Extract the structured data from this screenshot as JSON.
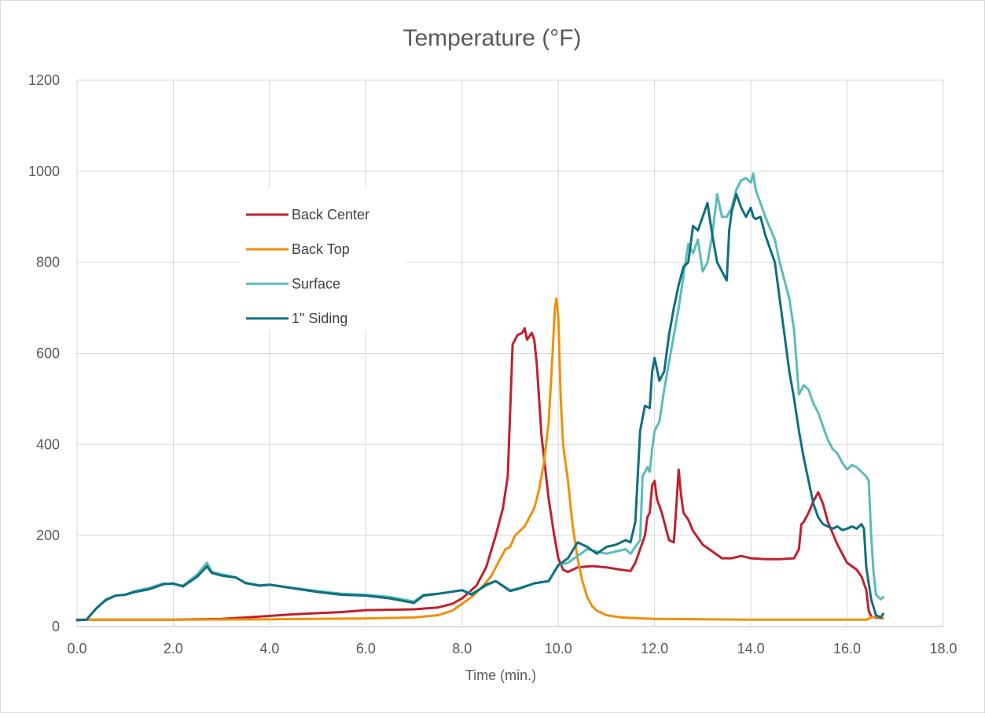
{
  "chart_data": {
    "type": "line",
    "title": "Temperature (°F)",
    "xlabel": "Time (min.)",
    "ylabel": "",
    "xlim": [
      0,
      18
    ],
    "ylim": [
      0,
      1200
    ],
    "x_ticks": [
      "0.0",
      "2.0",
      "4.0",
      "6.0",
      "8.0",
      "10.0",
      "12.0",
      "14.0",
      "16.0",
      "18.0"
    ],
    "y_ticks": [
      "0",
      "200",
      "400",
      "600",
      "800",
      "1000",
      "1200"
    ],
    "grid": true,
    "legend_position": "upper-left inside plot",
    "series": [
      {
        "name": "Back Center",
        "color": "#C0202E",
        "points": [
          [
            0,
            15
          ],
          [
            1,
            15
          ],
          [
            2,
            15
          ],
          [
            3,
            17
          ],
          [
            3.8,
            22
          ],
          [
            4.5,
            27
          ],
          [
            5.5,
            32
          ],
          [
            6,
            36
          ],
          [
            7,
            38
          ],
          [
            7.5,
            42
          ],
          [
            7.8,
            50
          ],
          [
            8,
            62
          ],
          [
            8.3,
            90
          ],
          [
            8.5,
            130
          ],
          [
            8.7,
            200
          ],
          [
            8.85,
            260
          ],
          [
            8.95,
            330
          ],
          [
            9.05,
            620
          ],
          [
            9.15,
            640
          ],
          [
            9.25,
            645
          ],
          [
            9.3,
            655
          ],
          [
            9.35,
            630
          ],
          [
            9.45,
            645
          ],
          [
            9.5,
            630
          ],
          [
            9.55,
            580
          ],
          [
            9.65,
            420
          ],
          [
            9.8,
            280
          ],
          [
            9.9,
            210
          ],
          [
            10,
            150
          ],
          [
            10.1,
            125
          ],
          [
            10.2,
            120
          ],
          [
            10.4,
            130
          ],
          [
            10.7,
            133
          ],
          [
            11,
            130
          ],
          [
            11.3,
            125
          ],
          [
            11.5,
            122
          ],
          [
            11.6,
            140
          ],
          [
            11.8,
            200
          ],
          [
            11.85,
            240
          ],
          [
            11.9,
            250
          ],
          [
            11.95,
            310
          ],
          [
            12,
            320
          ],
          [
            12.05,
            280
          ],
          [
            12.15,
            250
          ],
          [
            12.3,
            190
          ],
          [
            12.4,
            185
          ],
          [
            12.45,
            260
          ],
          [
            12.5,
            345
          ],
          [
            12.55,
            290
          ],
          [
            12.6,
            250
          ],
          [
            12.7,
            235
          ],
          [
            12.8,
            210
          ],
          [
            13,
            180
          ],
          [
            13.2,
            165
          ],
          [
            13.4,
            150
          ],
          [
            13.6,
            150
          ],
          [
            13.8,
            155
          ],
          [
            14,
            150
          ],
          [
            14.3,
            148
          ],
          [
            14.6,
            148
          ],
          [
            14.9,
            150
          ],
          [
            15,
            170
          ],
          [
            15.05,
            225
          ],
          [
            15.1,
            230
          ],
          [
            15.2,
            250
          ],
          [
            15.3,
            275
          ],
          [
            15.35,
            285
          ],
          [
            15.4,
            295
          ],
          [
            15.5,
            270
          ],
          [
            15.6,
            230
          ],
          [
            15.8,
            180
          ],
          [
            16,
            140
          ],
          [
            16.2,
            125
          ],
          [
            16.3,
            110
          ],
          [
            16.4,
            80
          ],
          [
            16.45,
            35
          ],
          [
            16.5,
            22
          ],
          [
            16.6,
            20
          ],
          [
            16.75,
            18
          ]
        ]
      },
      {
        "name": "Back Top",
        "color": "#F0900A",
        "points": [
          [
            0,
            15
          ],
          [
            2,
            15
          ],
          [
            4,
            16
          ],
          [
            6,
            18
          ],
          [
            7,
            20
          ],
          [
            7.5,
            25
          ],
          [
            7.8,
            35
          ],
          [
            8,
            50
          ],
          [
            8.2,
            65
          ],
          [
            8.4,
            85
          ],
          [
            8.6,
            110
          ],
          [
            8.75,
            140
          ],
          [
            8.9,
            170
          ],
          [
            9,
            175
          ],
          [
            9.1,
            200
          ],
          [
            9.2,
            210
          ],
          [
            9.3,
            220
          ],
          [
            9.4,
            240
          ],
          [
            9.5,
            260
          ],
          [
            9.6,
            300
          ],
          [
            9.7,
            360
          ],
          [
            9.8,
            450
          ],
          [
            9.88,
            600
          ],
          [
            9.93,
            700
          ],
          [
            9.96,
            720
          ],
          [
            10,
            680
          ],
          [
            10.05,
            500
          ],
          [
            10.1,
            400
          ],
          [
            10.2,
            320
          ],
          [
            10.3,
            220
          ],
          [
            10.4,
            150
          ],
          [
            10.5,
            100
          ],
          [
            10.6,
            65
          ],
          [
            10.7,
            45
          ],
          [
            10.8,
            35
          ],
          [
            11,
            25
          ],
          [
            11.3,
            20
          ],
          [
            12,
            17
          ],
          [
            13,
            16
          ],
          [
            14,
            15
          ],
          [
            15,
            15
          ],
          [
            16,
            15
          ],
          [
            16.4,
            15
          ],
          [
            16.5,
            20
          ],
          [
            16.6,
            22
          ],
          [
            16.75,
            18
          ]
        ]
      },
      {
        "name": "Surface",
        "color": "#5BBCB6",
        "points": [
          [
            0,
            14
          ],
          [
            0.2,
            16
          ],
          [
            0.4,
            40
          ],
          [
            0.6,
            60
          ],
          [
            0.8,
            68
          ],
          [
            1,
            70
          ],
          [
            1.2,
            78
          ],
          [
            1.5,
            85
          ],
          [
            1.8,
            95
          ],
          [
            2,
            93
          ],
          [
            2.2,
            90
          ],
          [
            2.5,
            115
          ],
          [
            2.7,
            140
          ],
          [
            2.8,
            120
          ],
          [
            3,
            115
          ],
          [
            3.3,
            108
          ],
          [
            3.5,
            95
          ],
          [
            3.8,
            90
          ],
          [
            4,
            92
          ],
          [
            4.5,
            85
          ],
          [
            5,
            78
          ],
          [
            5.5,
            72
          ],
          [
            6,
            70
          ],
          [
            6.5,
            65
          ],
          [
            7,
            55
          ],
          [
            7.2,
            70
          ],
          [
            7.5,
            72
          ],
          [
            8,
            80
          ],
          [
            8.2,
            72
          ],
          [
            8.5,
            90
          ],
          [
            8.7,
            100
          ],
          [
            9,
            80
          ],
          [
            9.2,
            85
          ],
          [
            9.5,
            95
          ],
          [
            9.8,
            100
          ],
          [
            10,
            135
          ],
          [
            10.2,
            140
          ],
          [
            10.4,
            155
          ],
          [
            10.6,
            170
          ],
          [
            10.8,
            165
          ],
          [
            11,
            160
          ],
          [
            11.2,
            165
          ],
          [
            11.4,
            170
          ],
          [
            11.5,
            160
          ],
          [
            11.6,
            175
          ],
          [
            11.7,
            190
          ],
          [
            11.75,
            330
          ],
          [
            11.85,
            350
          ],
          [
            11.9,
            340
          ],
          [
            11.95,
            390
          ],
          [
            12,
            430
          ],
          [
            12.1,
            450
          ],
          [
            12.2,
            520
          ],
          [
            12.3,
            580
          ],
          [
            12.4,
            640
          ],
          [
            12.5,
            700
          ],
          [
            12.6,
            770
          ],
          [
            12.7,
            840
          ],
          [
            12.8,
            820
          ],
          [
            12.9,
            850
          ],
          [
            13,
            780
          ],
          [
            13.1,
            800
          ],
          [
            13.2,
            860
          ],
          [
            13.3,
            950
          ],
          [
            13.4,
            900
          ],
          [
            13.5,
            900
          ],
          [
            13.6,
            920
          ],
          [
            13.7,
            960
          ],
          [
            13.8,
            980
          ],
          [
            13.9,
            985
          ],
          [
            14,
            975
          ],
          [
            14.05,
            995
          ],
          [
            14.1,
            960
          ],
          [
            14.2,
            930
          ],
          [
            14.3,
            900
          ],
          [
            14.5,
            850
          ],
          [
            14.6,
            800
          ],
          [
            14.7,
            760
          ],
          [
            14.8,
            720
          ],
          [
            14.9,
            650
          ],
          [
            15,
            510
          ],
          [
            15.1,
            530
          ],
          [
            15.2,
            520
          ],
          [
            15.3,
            490
          ],
          [
            15.4,
            470
          ],
          [
            15.5,
            440
          ],
          [
            15.6,
            410
          ],
          [
            15.7,
            390
          ],
          [
            15.8,
            380
          ],
          [
            15.9,
            360
          ],
          [
            16,
            345
          ],
          [
            16.1,
            355
          ],
          [
            16.2,
            350
          ],
          [
            16.3,
            340
          ],
          [
            16.4,
            330
          ],
          [
            16.45,
            320
          ],
          [
            16.5,
            200
          ],
          [
            16.55,
            120
          ],
          [
            16.6,
            70
          ],
          [
            16.7,
            60
          ],
          [
            16.75,
            65
          ]
        ]
      },
      {
        "name": "1\" Siding",
        "color": "#0F6E82",
        "points": [
          [
            0,
            14
          ],
          [
            0.2,
            15
          ],
          [
            0.4,
            40
          ],
          [
            0.6,
            58
          ],
          [
            0.8,
            68
          ],
          [
            1,
            70
          ],
          [
            1.2,
            76
          ],
          [
            1.5,
            82
          ],
          [
            1.8,
            93
          ],
          [
            2,
            95
          ],
          [
            2.2,
            88
          ],
          [
            2.5,
            110
          ],
          [
            2.7,
            132
          ],
          [
            2.8,
            118
          ],
          [
            3,
            112
          ],
          [
            3.3,
            108
          ],
          [
            3.5,
            96
          ],
          [
            3.8,
            90
          ],
          [
            4,
            92
          ],
          [
            4.5,
            84
          ],
          [
            5,
            76
          ],
          [
            5.5,
            70
          ],
          [
            6,
            68
          ],
          [
            6.5,
            62
          ],
          [
            7,
            52
          ],
          [
            7.2,
            68
          ],
          [
            7.5,
            72
          ],
          [
            8,
            80
          ],
          [
            8.2,
            70
          ],
          [
            8.5,
            92
          ],
          [
            8.7,
            100
          ],
          [
            9,
            78
          ],
          [
            9.2,
            84
          ],
          [
            9.5,
            95
          ],
          [
            9.8,
            100
          ],
          [
            10,
            135
          ],
          [
            10.2,
            150
          ],
          [
            10.4,
            185
          ],
          [
            10.6,
            175
          ],
          [
            10.8,
            160
          ],
          [
            11,
            175
          ],
          [
            11.2,
            180
          ],
          [
            11.4,
            190
          ],
          [
            11.5,
            185
          ],
          [
            11.6,
            230
          ],
          [
            11.7,
            430
          ],
          [
            11.8,
            485
          ],
          [
            11.9,
            480
          ],
          [
            11.95,
            560
          ],
          [
            12,
            590
          ],
          [
            12.1,
            540
          ],
          [
            12.2,
            560
          ],
          [
            12.3,
            640
          ],
          [
            12.4,
            700
          ],
          [
            12.5,
            750
          ],
          [
            12.6,
            790
          ],
          [
            12.7,
            800
          ],
          [
            12.8,
            880
          ],
          [
            12.9,
            870
          ],
          [
            13,
            900
          ],
          [
            13.1,
            930
          ],
          [
            13.2,
            860
          ],
          [
            13.3,
            800
          ],
          [
            13.4,
            780
          ],
          [
            13.5,
            760
          ],
          [
            13.55,
            870
          ],
          [
            13.6,
            910
          ],
          [
            13.7,
            950
          ],
          [
            13.8,
            920
          ],
          [
            13.9,
            900
          ],
          [
            14,
            920
          ],
          [
            14.05,
            900
          ],
          [
            14.1,
            895
          ],
          [
            14.2,
            900
          ],
          [
            14.3,
            860
          ],
          [
            14.4,
            830
          ],
          [
            14.5,
            800
          ],
          [
            14.6,
            720
          ],
          [
            14.7,
            640
          ],
          [
            14.8,
            560
          ],
          [
            14.9,
            500
          ],
          [
            15,
            430
          ],
          [
            15.1,
            370
          ],
          [
            15.2,
            320
          ],
          [
            15.3,
            270
          ],
          [
            15.4,
            240
          ],
          [
            15.5,
            225
          ],
          [
            15.6,
            220
          ],
          [
            15.7,
            215
          ],
          [
            15.8,
            220
          ],
          [
            15.9,
            212
          ],
          [
            16,
            215
          ],
          [
            16.1,
            220
          ],
          [
            16.2,
            215
          ],
          [
            16.3,
            225
          ],
          [
            16.35,
            215
          ],
          [
            16.4,
            130
          ],
          [
            16.5,
            60
          ],
          [
            16.6,
            25
          ],
          [
            16.7,
            20
          ],
          [
            16.75,
            28
          ]
        ]
      }
    ]
  }
}
